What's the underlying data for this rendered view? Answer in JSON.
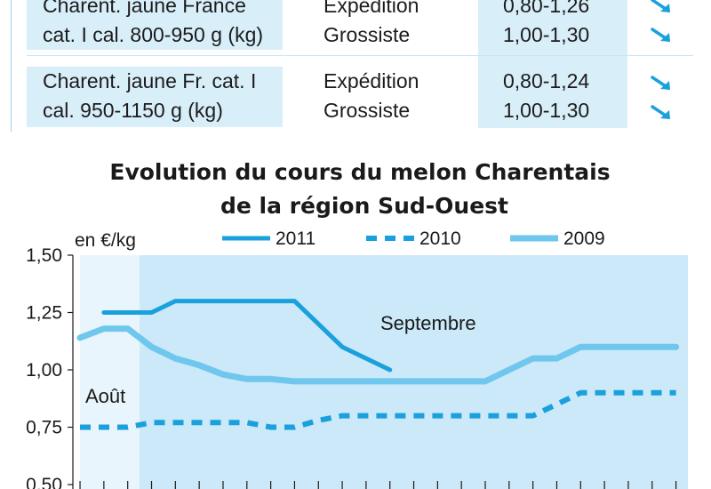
{
  "price_table": {
    "rows": [
      {
        "product_lines": [
          "Charent. jaune France",
          "cat. I cal. 800-950 g (kg)"
        ],
        "stage_lines": [
          "Expédition",
          "Grossiste"
        ],
        "price_lines": [
          "0,80-1,26",
          "1,00-1,30"
        ],
        "trend_icons": [
          "arrow-down-right-icon",
          "arrow-down-right-icon"
        ]
      },
      {
        "product_lines": [
          "Charent. jaune Fr. cat. I",
          "cal. 950-1150 g (kg)"
        ],
        "stage_lines": [
          "Expédition",
          "Grossiste"
        ],
        "price_lines": [
          "0,80-1,24",
          "1,00-1,30"
        ],
        "trend_icons": [
          "arrow-down-right-icon",
          "arrow-down-right-icon"
        ]
      }
    ]
  },
  "colors": {
    "series_2011": "#1aa0dc",
    "series_2010": "#1aa0dc",
    "series_2009": "#6fc7ee",
    "band_aout": "#e9f5fc",
    "band_septembre": "#cbe9f8",
    "cell_background": "#d8eef9",
    "trend_arrow": "#1aa0dc"
  },
  "chart_data": {
    "type": "line",
    "title": [
      "Evolution du cours du melon Charentais",
      "de la région Sud-Ouest"
    ],
    "ylabel": "en €/kg",
    "ylim": [
      0.5,
      1.5
    ],
    "yticks": [
      "1,50",
      "1,25",
      "1,00",
      "0,75",
      "0,50"
    ],
    "ytick_values": [
      1.5,
      1.25,
      1.0,
      0.75,
      0.5
    ],
    "period_labels": [
      "Août",
      "Septembre"
    ],
    "periods": [
      {
        "label": "Août",
        "from": 0,
        "to": 2.5
      },
      {
        "label": "Septembre",
        "from": 2.5,
        "to": 25.5
      }
    ],
    "legend": [
      "2011",
      "2010",
      "2009"
    ],
    "legend_position": "top",
    "x": [
      0,
      1,
      2,
      3,
      4,
      5,
      6,
      7,
      8,
      9,
      10,
      11,
      12,
      13,
      14,
      15,
      16,
      17,
      18,
      19,
      20,
      21,
      22,
      23,
      24,
      25
    ],
    "series": [
      {
        "name": "2011",
        "style": "solid-thick",
        "x": [
          1,
          2,
          3,
          4,
          5,
          6,
          7,
          8,
          9,
          10,
          11,
          12,
          13
        ],
        "values": [
          1.25,
          1.25,
          1.25,
          1.3,
          1.3,
          1.3,
          1.3,
          1.3,
          1.3,
          1.2,
          1.1,
          1.05,
          1.0
        ]
      },
      {
        "name": "2010",
        "style": "dashed",
        "x": [
          0,
          1,
          2,
          3,
          4,
          5,
          6,
          7,
          8,
          9,
          10,
          11,
          12,
          13,
          14,
          15,
          16,
          17,
          18,
          19,
          20,
          21,
          22,
          23,
          24,
          25
        ],
        "values": [
          0.75,
          0.75,
          0.75,
          0.77,
          0.77,
          0.77,
          0.77,
          0.77,
          0.75,
          0.75,
          0.78,
          0.8,
          0.8,
          0.8,
          0.8,
          0.8,
          0.8,
          0.8,
          0.8,
          0.8,
          0.85,
          0.9,
          0.9,
          0.9,
          0.9,
          0.9
        ]
      },
      {
        "name": "2009",
        "style": "solid-light",
        "x": [
          0,
          1,
          2,
          3,
          4,
          5,
          6,
          7,
          8,
          9,
          10,
          11,
          12,
          13,
          14,
          15,
          16,
          17,
          18,
          19,
          20,
          21,
          22,
          23,
          24,
          25
        ],
        "values": [
          1.14,
          1.18,
          1.18,
          1.1,
          1.05,
          1.02,
          0.98,
          0.96,
          0.96,
          0.95,
          0.95,
          0.95,
          0.95,
          0.95,
          0.95,
          0.95,
          0.95,
          0.95,
          1.0,
          1.05,
          1.05,
          1.1,
          1.1,
          1.1,
          1.1,
          1.1
        ]
      }
    ]
  }
}
